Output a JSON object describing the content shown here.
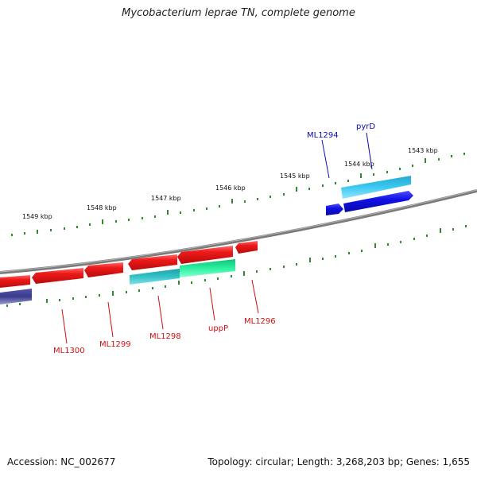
{
  "title": "Mycobacterium leprae TN, complete genome",
  "footer": {
    "accession": "Accession: NC_002677",
    "summary": "Topology: circular; Length: 3,268,203 bp; Genes: 1,655"
  },
  "colors": {
    "backbone": "#8a8a8a",
    "forward_tick": "#2f8a2f",
    "red_gene": "#e8121b",
    "red_label": "#d01010",
    "blue_gene": "#1010e0",
    "blue_label": "#0a0ab0",
    "cyan_gene": "#33c8ec",
    "teal_gene": "#2fbfbf",
    "green_gene": "#22ee99",
    "navy_gene": "#3a3a8a"
  },
  "kbp_labels": [
    "1543 kbp",
    "1544 kbp",
    "1545 kbp",
    "1546 kbp",
    "1547 kbp",
    "1548 kbp",
    "1549 kbp"
  ],
  "gene_labels": [
    {
      "text": "pyrD",
      "strand": "forward"
    },
    {
      "text": "ML1294",
      "strand": "forward"
    },
    {
      "text": "ML1296",
      "strand": "reverse"
    },
    {
      "text": "uppP",
      "strand": "reverse"
    },
    {
      "text": "ML1298",
      "strand": "reverse"
    },
    {
      "text": "ML1299",
      "strand": "reverse"
    },
    {
      "text": "ML1300",
      "strand": "reverse"
    }
  ]
}
